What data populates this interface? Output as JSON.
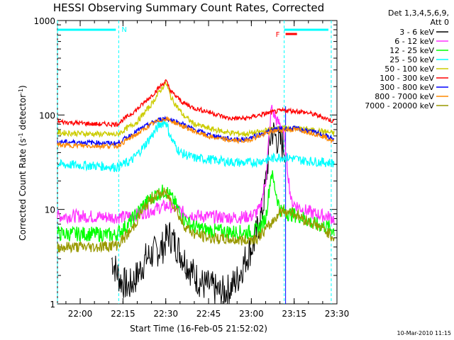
{
  "chart_data": {
    "type": "line",
    "title": "HESSI Observing Summary Count Rates, Corrected",
    "xlabel": "Start Time (16-Feb-05 21:52:02)",
    "ylabel": "Corrected Count Rate (s⁻¹ detector⁻¹)",
    "ylabel_parts": [
      "Corrected Count Rate (s",
      "-1",
      " detector",
      "-1",
      ")"
    ],
    "y_scale": "log",
    "ylim": [
      1,
      1000
    ],
    "y_ticks": [
      1,
      10,
      100,
      1000
    ],
    "y_tick_labels": [
      "1",
      "10",
      "100",
      "1000"
    ],
    "xlim": [
      "21:52:02",
      "23:30:00"
    ],
    "x_ticks": [
      "22:00",
      "22:15",
      "22:30",
      "22:45",
      "23:00",
      "23:15",
      "23:30"
    ],
    "grid": false,
    "legend_header": [
      "Det 1,3,4,5,6,9,",
      "Att 0"
    ],
    "legend_position": "right",
    "series": [
      {
        "name": "3 - 6 keV",
        "color": "#000000",
        "x": [
          "22:11",
          "22:14",
          "22:17",
          "22:20",
          "22:23",
          "22:26",
          "22:29",
          "22:31",
          "22:34",
          "22:37",
          "22:40",
          "22:43",
          "22:46",
          "22:49",
          "22:52",
          "22:55",
          "22:58",
          "23:01",
          "23:04",
          "23:07",
          "23:09",
          "23:11",
          "23:12"
        ],
        "values": [
          3,
          1.8,
          1.5,
          2,
          3,
          3.5,
          4,
          5.5,
          4,
          2.8,
          2,
          1.6,
          1.5,
          1.3,
          1.4,
          1.8,
          3,
          4.5,
          10,
          70,
          55,
          48,
          45
        ]
      },
      {
        "name": "6 - 12 keV",
        "color": "#ff33ff",
        "x": [
          "21:52",
          "22:00",
          "22:10",
          "22:15",
          "22:20",
          "22:25",
          "22:28",
          "22:31",
          "22:34",
          "22:37",
          "22:42",
          "22:48",
          "22:55",
          "23:00",
          "23:03",
          "23:05",
          "23:07",
          "23:09",
          "23:11",
          "23:14",
          "23:18",
          "23:22",
          "23:26",
          "23:29"
        ],
        "values": [
          8.5,
          8.5,
          8.3,
          8.3,
          8.8,
          9.8,
          10.5,
          11,
          10,
          9,
          8.5,
          8.3,
          8.2,
          8.5,
          10,
          20,
          120,
          85,
          75,
          12,
          10,
          9,
          8.5,
          8
        ]
      },
      {
        "name": "12 - 25 keV",
        "color": "#00ff00",
        "x": [
          "21:52",
          "22:05",
          "22:12",
          "22:17",
          "22:22",
          "22:26",
          "22:30",
          "22:33",
          "22:36",
          "22:40",
          "22:45",
          "22:52",
          "22:58",
          "23:02",
          "23:05",
          "23:07",
          "23:10",
          "23:13",
          "23:17",
          "23:22",
          "23:27",
          "23:29"
        ],
        "values": [
          5.5,
          5.5,
          5.3,
          7,
          11,
          14,
          16,
          12,
          8,
          6.5,
          6,
          5.8,
          5.7,
          6,
          8,
          25,
          10,
          9,
          8.5,
          7,
          6.5,
          6
        ]
      },
      {
        "name": "25 - 50 keV",
        "color": "#00ffff",
        "x": [
          "21:52",
          "22:05",
          "22:13",
          "22:18",
          "22:22",
          "22:25",
          "22:28",
          "22:30",
          "22:32",
          "22:35",
          "22:40",
          "22:45",
          "22:52",
          "22:58",
          "23:02",
          "23:06",
          "23:10",
          "23:14",
          "23:18",
          "23:23",
          "23:29"
        ],
        "values": [
          30,
          29,
          28,
          33,
          45,
          60,
          80,
          85,
          55,
          40,
          35,
          34,
          32,
          31,
          32,
          34,
          36,
          35,
          33,
          32,
          31
        ]
      },
      {
        "name": "50 - 100 keV",
        "color": "#cccc00",
        "x": [
          "21:52",
          "22:05",
          "22:13",
          "22:20",
          "22:25",
          "22:28",
          "22:30",
          "22:32",
          "22:36",
          "22:40",
          "22:45",
          "22:52",
          "22:58",
          "23:03",
          "23:08",
          "23:12",
          "23:16",
          "23:20",
          "23:25",
          "23:29"
        ],
        "values": [
          65,
          63,
          62,
          85,
          130,
          180,
          220,
          150,
          100,
          80,
          72,
          65,
          63,
          66,
          72,
          72,
          72,
          70,
          67,
          64
        ]
      },
      {
        "name": "100 - 300 keV",
        "color": "#ff0000",
        "x": [
          "21:52",
          "22:05",
          "22:13",
          "22:20",
          "22:25",
          "22:28",
          "22:30",
          "22:32",
          "22:36",
          "22:40",
          "22:45",
          "22:52",
          "22:58",
          "23:03",
          "23:08",
          "23:12",
          "23:16",
          "23:20",
          "23:25",
          "23:29"
        ],
        "values": [
          85,
          80,
          80,
          115,
          160,
          200,
          230,
          175,
          135,
          118,
          108,
          92,
          92,
          100,
          108,
          112,
          110,
          105,
          95,
          85
        ]
      },
      {
        "name": "300 - 800 keV",
        "color": "#0000ff",
        "x": [
          "21:52",
          "22:05",
          "22:13",
          "22:20",
          "22:25",
          "22:28",
          "22:30",
          "22:32",
          "22:36",
          "22:40",
          "22:45",
          "22:52",
          "22:58",
          "23:03",
          "23:08",
          "23:12",
          "23:16",
          "23:20",
          "23:25",
          "23:29"
        ],
        "values": [
          52,
          51,
          50,
          68,
          82,
          90,
          92,
          88,
          80,
          70,
          62,
          56,
          55,
          62,
          70,
          72,
          72,
          68,
          62,
          55
        ]
      },
      {
        "name": "800 - 7000 keV",
        "color": "#ff8800",
        "x": [
          "21:52",
          "22:05",
          "22:13",
          "22:20",
          "22:25",
          "22:28",
          "22:30",
          "22:32",
          "22:36",
          "22:40",
          "22:45",
          "22:52",
          "22:58",
          "23:03",
          "23:08",
          "23:12",
          "23:16",
          "23:20",
          "23:25",
          "23:29"
        ],
        "values": [
          48,
          47,
          47,
          63,
          80,
          88,
          92,
          86,
          76,
          67,
          59,
          54,
          53,
          60,
          68,
          70,
          70,
          66,
          60,
          52
        ]
      },
      {
        "name": "7000 - 20000 keV",
        "color": "#999900",
        "x": [
          "21:52",
          "22:05",
          "22:13",
          "22:18",
          "22:22",
          "22:26",
          "22:30",
          "22:33",
          "22:36",
          "22:40",
          "22:45",
          "22:52",
          "22:58",
          "23:02",
          "23:06",
          "23:10",
          "23:14",
          "23:18",
          "23:22",
          "23:26",
          "23:29"
        ],
        "values": [
          4,
          4,
          4.2,
          6,
          10,
          14,
          15,
          11,
          7,
          5.5,
          5,
          4.8,
          4.7,
          5,
          6.5,
          9.5,
          9.5,
          8,
          7,
          6,
          5
        ]
      }
    ],
    "annotations": {
      "night_intervals": [
        {
          "label": "N",
          "start": "21:52:02",
          "end": "22:13:30",
          "color": "#00ffff"
        },
        {
          "label": "",
          "start": "23:11:30",
          "end": "23:28:00",
          "color": "#00ffff"
        }
      ],
      "flare": {
        "label": "F",
        "start": "23:12:00",
        "end": "23:16:00",
        "color": "#ff0000"
      },
      "blue_marker_time": "23:12:00"
    },
    "timestamp": "10-Mar-2010 11:15"
  }
}
